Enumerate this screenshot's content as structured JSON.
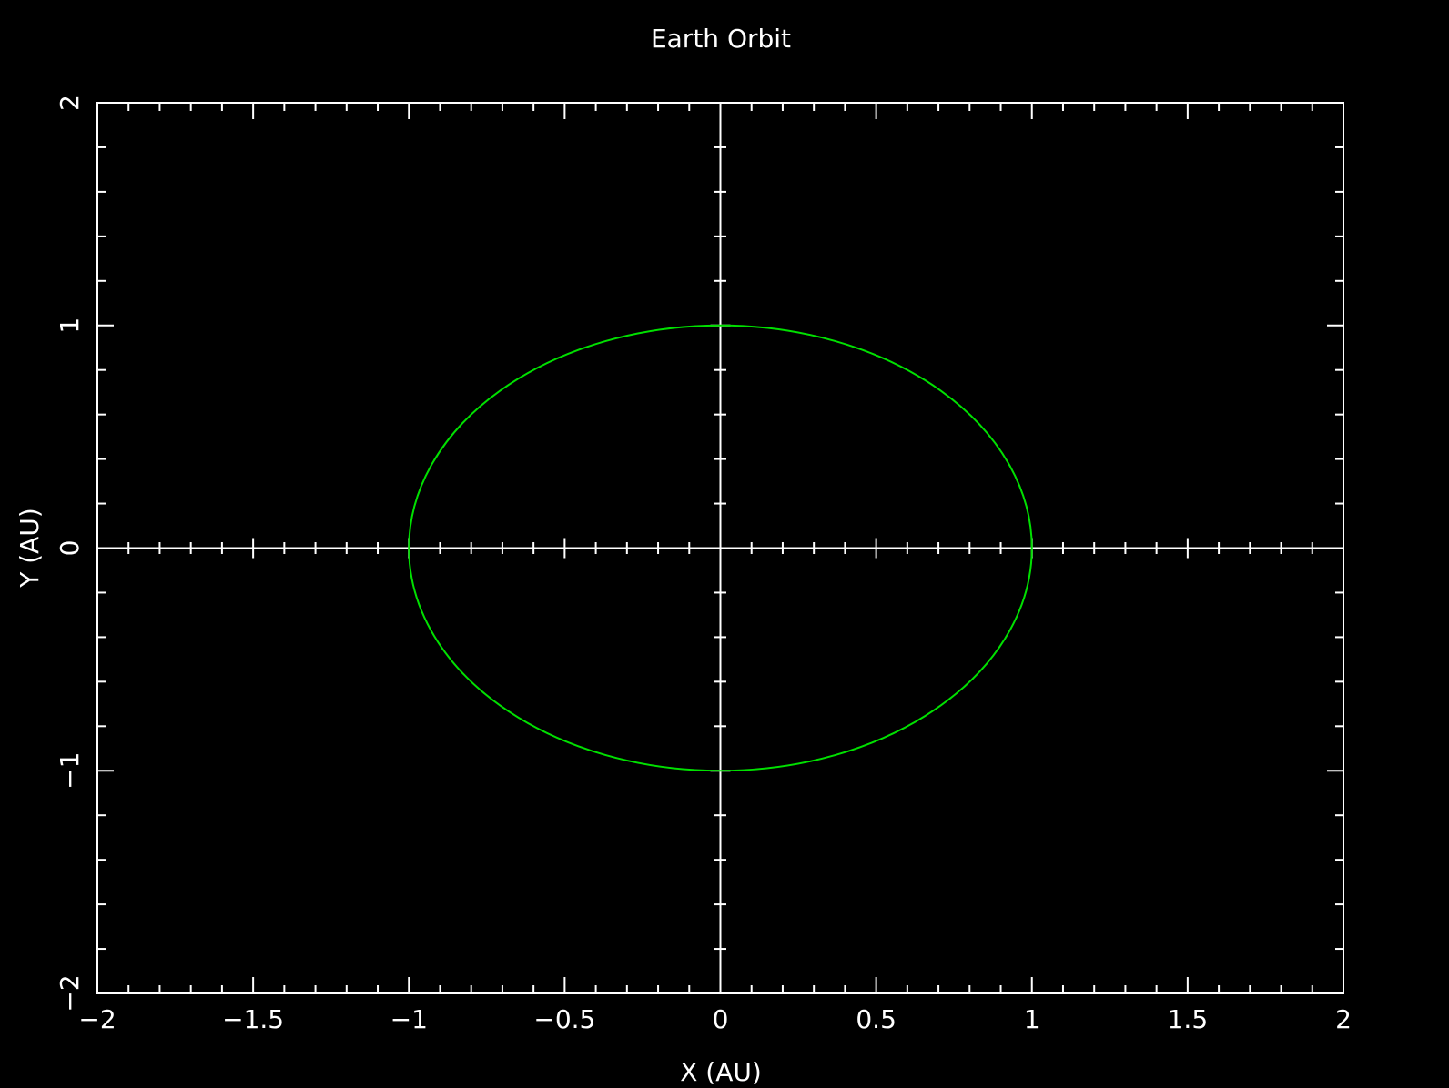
{
  "chart_data": {
    "type": "line",
    "title": "Earth Orbit",
    "xlabel": "X (AU)",
    "ylabel": "Y (AU)",
    "xlim": [
      -2,
      2
    ],
    "ylim": [
      -2,
      2
    ],
    "x_ticks": [
      {
        "value": -2,
        "label": "−2"
      },
      {
        "value": -1.5,
        "label": "−1.5"
      },
      {
        "value": -1,
        "label": "−1"
      },
      {
        "value": -0.5,
        "label": "−0.5"
      },
      {
        "value": 0,
        "label": "0"
      },
      {
        "value": 0.5,
        "label": "0.5"
      },
      {
        "value": 1,
        "label": "1"
      },
      {
        "value": 1.5,
        "label": "1.5"
      },
      {
        "value": 2,
        "label": "2"
      }
    ],
    "y_ticks": [
      {
        "value": -2,
        "label": "−2"
      },
      {
        "value": -1,
        "label": "−1"
      },
      {
        "value": 0,
        "label": "0"
      },
      {
        "value": 1,
        "label": "1"
      },
      {
        "value": 2,
        "label": "2"
      }
    ],
    "x_minor_step": 0.1,
    "y_minor_step": 0.2,
    "zero_axes": true,
    "grid": false,
    "series": [
      {
        "shape": "circle",
        "center": [
          0,
          0
        ],
        "radius": 1,
        "color": "#00e000"
      }
    ],
    "colors": {
      "background": "#000000",
      "axes": "#ffffff",
      "text": "#ffffff"
    }
  }
}
